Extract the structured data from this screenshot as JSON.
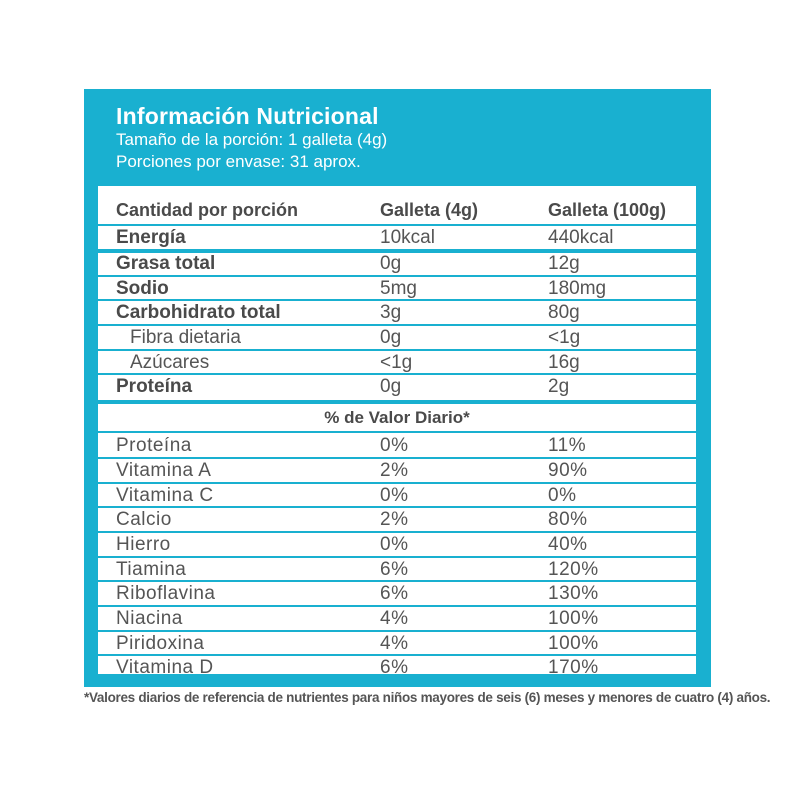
{
  "header": {
    "title": "Información Nutricional",
    "serving_size": "Tamaño de la porción: 1 galleta (4g)",
    "servings": "Porciones por envase: 31 aprox."
  },
  "columns": {
    "c1": "Cantidad por porción",
    "c2": "Galleta  (4g)",
    "c3": "Galleta (100g)"
  },
  "nutrients": [
    {
      "name": "Energía",
      "v1": "10kcal",
      "v2": "440kcal"
    },
    {
      "name": "Grasa total",
      "v1": "0g",
      "v2": "12g"
    },
    {
      "name": "Sodio",
      "v1": "5mg",
      "v2": "180mg"
    },
    {
      "name": "Carbohidrato total",
      "v1": "3g",
      "v2": "80g"
    },
    {
      "name": "Fibra dietaria",
      "v1": "0g",
      "v2": "<1g"
    },
    {
      "name": "Azúcares",
      "v1": "<1g",
      "v2": "16g"
    },
    {
      "name": "Proteína",
      "v1": "0g",
      "v2": "2g"
    }
  ],
  "daily_value_title": "% de Valor Diario*",
  "daily_values": [
    {
      "name": "Proteína",
      "v1": "0%",
      "v2": "11%"
    },
    {
      "name": "Vitamina A",
      "v1": "2%",
      "v2": "90%"
    },
    {
      "name": "Vitamina C",
      "v1": "0%",
      "v2": "0%"
    },
    {
      "name": "Calcio",
      "v1": "2%",
      "v2": "80%"
    },
    {
      "name": "Hierro",
      "v1": "0%",
      "v2": "40%"
    },
    {
      "name": "Tiamina",
      "v1": "6%",
      "v2": "120%"
    },
    {
      "name": "Riboflavina",
      "v1": "6%",
      "v2": "130%"
    },
    {
      "name": "Niacina",
      "v1": "4%",
      "v2": "100%"
    },
    {
      "name": "Piridoxina",
      "v1": "4%",
      "v2": "100%"
    },
    {
      "name": "Vitamina D",
      "v1": "6%",
      "v2": "170%"
    }
  ],
  "footnote": "*Valores diarios de referencia de nutrientes para niños mayores de seis (6) meses y menores de cuatro (4) años.",
  "colors": {
    "accent": "#19b0d0",
    "text": "#4a4a4a"
  }
}
